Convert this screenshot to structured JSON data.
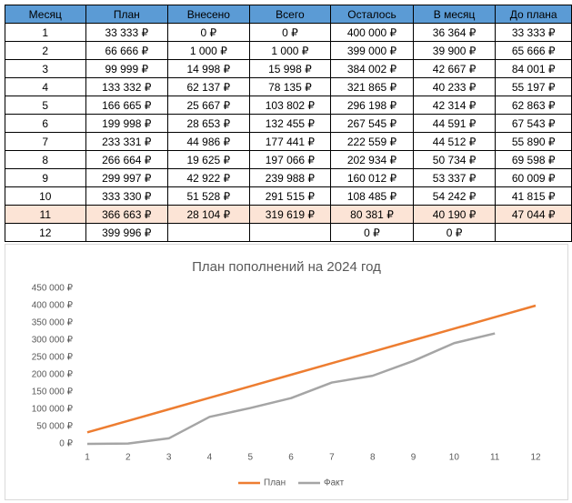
{
  "table": {
    "header": [
      "Месяц",
      "План",
      "Внесено",
      "Всего",
      "Осталось",
      "В месяц",
      "До плана"
    ],
    "rows": [
      [
        "1",
        "33 333 ₽",
        "0 ₽",
        "0 ₽",
        "400 000 ₽",
        "36 364 ₽",
        "33 333 ₽"
      ],
      [
        "2",
        "66 666 ₽",
        "1 000 ₽",
        "1 000 ₽",
        "399 000 ₽",
        "39 900 ₽",
        "65 666 ₽"
      ],
      [
        "3",
        "99 999 ₽",
        "14 998 ₽",
        "15 998 ₽",
        "384 002 ₽",
        "42 667 ₽",
        "84 001 ₽"
      ],
      [
        "4",
        "133 332 ₽",
        "62 137 ₽",
        "78 135 ₽",
        "321 865 ₽",
        "40 233 ₽",
        "55 197 ₽"
      ],
      [
        "5",
        "166 665 ₽",
        "25 667 ₽",
        "103 802 ₽",
        "296 198 ₽",
        "42 314 ₽",
        "62 863 ₽"
      ],
      [
        "6",
        "199 998 ₽",
        "28 653 ₽",
        "132 455 ₽",
        "267 545 ₽",
        "44 591 ₽",
        "67 543 ₽"
      ],
      [
        "7",
        "233 331 ₽",
        "44 986 ₽",
        "177 441 ₽",
        "222 559 ₽",
        "44 512 ₽",
        "55 890 ₽"
      ],
      [
        "8",
        "266 664 ₽",
        "19 625 ₽",
        "197 066 ₽",
        "202 934 ₽",
        "50 734 ₽",
        "69 598 ₽"
      ],
      [
        "9",
        "299 997 ₽",
        "42 922 ₽",
        "239 988 ₽",
        "160 012 ₽",
        "53 337 ₽",
        "60 009 ₽"
      ],
      [
        "10",
        "333 330 ₽",
        "51 528 ₽",
        "291 515 ₽",
        "108 485 ₽",
        "54 242 ₽",
        "41 815 ₽"
      ],
      [
        "11",
        "366 663 ₽",
        "28 104 ₽",
        "319 619 ₽",
        "80 381 ₽",
        "40 190 ₽",
        "47 044 ₽"
      ],
      [
        "12",
        "399 996 ₽",
        null,
        null,
        "0 ₽",
        "0 ₽",
        null
      ]
    ]
  },
  "chart_data": {
    "type": "line",
    "title": "План пополнений на 2024 год",
    "categories": [
      "1",
      "2",
      "3",
      "4",
      "5",
      "6",
      "7",
      "8",
      "9",
      "10",
      "11",
      "12"
    ],
    "series": [
      {
        "name": "План",
        "color": "#ed7d31",
        "values": [
          33333,
          66666,
          99999,
          133332,
          166665,
          199998,
          233331,
          266664,
          299997,
          333330,
          366663,
          399996
        ]
      },
      {
        "name": "Факт",
        "color": "#a5a5a5",
        "values": [
          0,
          1000,
          15998,
          78135,
          103802,
          132455,
          177441,
          197066,
          239988,
          291515,
          319619,
          null
        ]
      }
    ],
    "ylim": [
      0,
      450000
    ],
    "yticks": [
      {
        "value": 0,
        "label": "0 ₽"
      },
      {
        "value": 50000,
        "label": "50 000 ₽"
      },
      {
        "value": 100000,
        "label": "100 000 ₽"
      },
      {
        "value": 150000,
        "label": "150 000 ₽"
      },
      {
        "value": 200000,
        "label": "200 000 ₽"
      },
      {
        "value": 250000,
        "label": "250 000 ₽"
      },
      {
        "value": 300000,
        "label": "300 000 ₽"
      },
      {
        "value": 350000,
        "label": "350 000 ₽"
      },
      {
        "value": 400000,
        "label": "400 000 ₽"
      },
      {
        "value": 450000,
        "label": "450 000 ₽"
      }
    ],
    "legend": "bottom"
  }
}
